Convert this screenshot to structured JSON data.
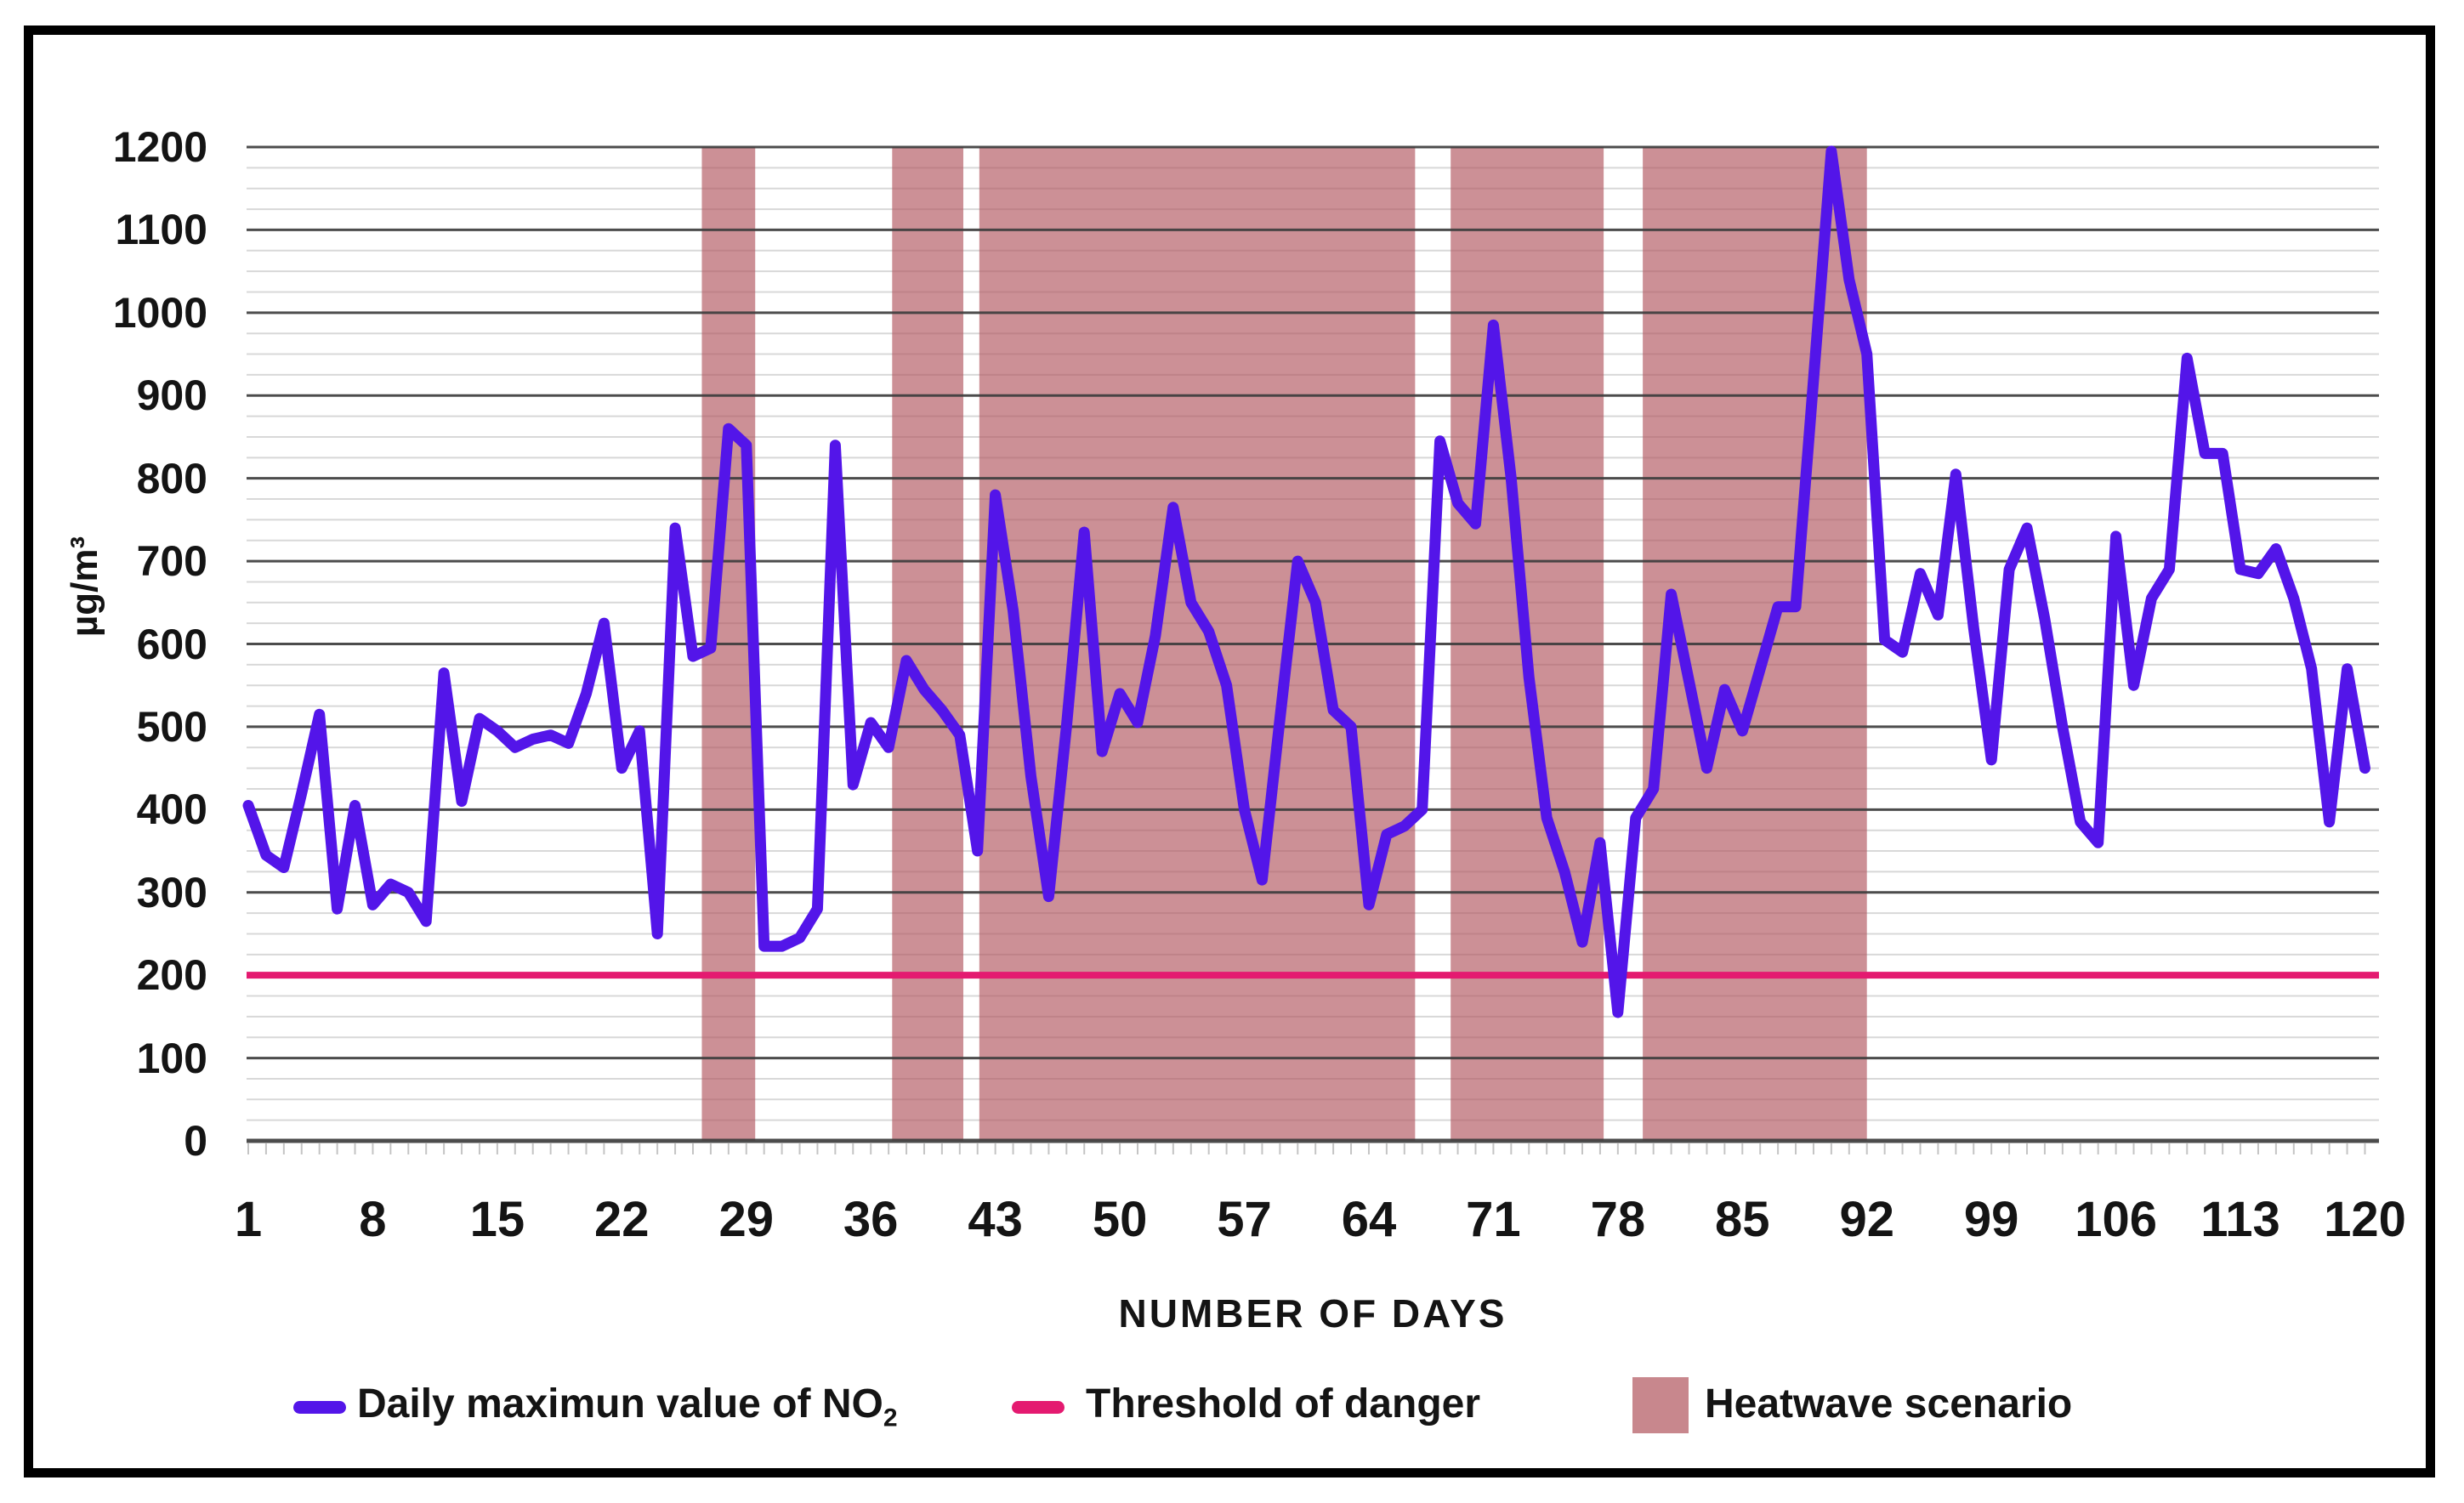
{
  "chart_data": {
    "type": "line",
    "title": "",
    "xlabel": "NUMBER OF DAYS",
    "ylabel": "µg/m³",
    "ylim": [
      0,
      1200
    ],
    "y_major_step": 100,
    "y_minor_step": 25,
    "y_tick_labels": [
      0,
      100,
      200,
      300,
      400,
      500,
      600,
      700,
      800,
      900,
      1000,
      1100,
      1200
    ],
    "x_tick_labels": [
      1,
      8,
      15,
      22,
      29,
      36,
      43,
      50,
      57,
      64,
      71,
      78,
      85,
      92,
      99,
      106,
      113,
      120
    ],
    "grid": {
      "major_color": "#3d3d3d",
      "minor_color": "#d8d8d8",
      "day_tick_color": "#c4c4c4"
    },
    "legend_position": "bottom",
    "series": [
      {
        "name": "Daily maximun value of NO2",
        "color": "#5315e9",
        "start_day": 1,
        "values": [
          405,
          345,
          330,
          420,
          515,
          280,
          405,
          285,
          310,
          300,
          265,
          565,
          410,
          510,
          495,
          475,
          485,
          490,
          480,
          540,
          625,
          450,
          495,
          250,
          740,
          585,
          595,
          860,
          840,
          235,
          235,
          245,
          280,
          840,
          430,
          505,
          475,
          580,
          545,
          520,
          490,
          350,
          780,
          640,
          440,
          295,
          500,
          735,
          470,
          540,
          505,
          610,
          765,
          650,
          615,
          550,
          400,
          315,
          510,
          700,
          650,
          520,
          500,
          285,
          370,
          380,
          400,
          845,
          770,
          745,
          985,
          800,
          560,
          390,
          325,
          240,
          360,
          155,
          390,
          425,
          660,
          555,
          450,
          545,
          495,
          570,
          645,
          645,
          920,
          1195,
          1040,
          950,
          605,
          590,
          685,
          635,
          805,
          620,
          460,
          690,
          740,
          630,
          500,
          385,
          360,
          730,
          550,
          655,
          690,
          945,
          830,
          830,
          690,
          685,
          715,
          655,
          570,
          385,
          570,
          450
        ]
      }
    ],
    "threshold": {
      "label": "Threshold of danger",
      "value": 200,
      "color": "#e41a70"
    },
    "heatwave_bands": {
      "label": "Heatwave scenario",
      "color": "#b25660",
      "opacity": 0.66,
      "day_ranges": [
        [
          26.5,
          29.5
        ],
        [
          37.2,
          41.2
        ],
        [
          42.1,
          66.6
        ],
        [
          68.6,
          77.2
        ],
        [
          79.4,
          92.0
        ]
      ]
    }
  },
  "legend": {
    "items": [
      {
        "label": "Daily maximun value of NO",
        "subscript": "2",
        "swatch": "line",
        "color": "#5315e9"
      },
      {
        "label": "Threshold of danger",
        "subscript": "",
        "swatch": "line",
        "color": "#e41a70"
      },
      {
        "label": "Heatwave scenario",
        "subscript": "",
        "swatch": "square",
        "color": "#c8878d"
      }
    ]
  }
}
